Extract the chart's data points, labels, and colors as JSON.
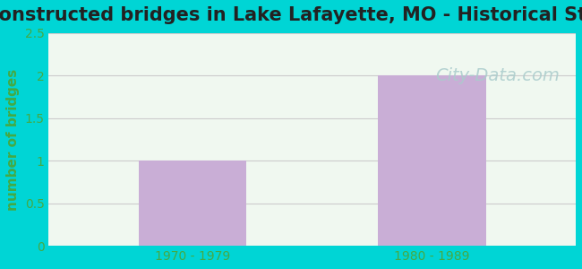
{
  "title": "Reconstructed bridges in Lake Lafayette, MO - Historical Statistics",
  "categories": [
    "1970 - 1979",
    "1980 - 1989"
  ],
  "values": [
    1,
    2
  ],
  "bar_color": "#c9aed6",
  "bar_edge_color": "none",
  "ylabel": "number of bridges",
  "ylim": [
    0,
    2.5
  ],
  "yticks": [
    0,
    0.5,
    1,
    1.5,
    2,
    2.5
  ],
  "bg_outer": "#00d5d5",
  "bg_plot_top": "#f0f8f0",
  "bg_plot_bottom": "#e8f8e8",
  "grid_color": "#cccccc",
  "title_fontsize": 15,
  "axis_label_fontsize": 11,
  "tick_fontsize": 10,
  "tick_color": "#44aa44",
  "watermark_text": "City-Data.com",
  "watermark_color": "#aacccc",
  "watermark_fontsize": 14
}
